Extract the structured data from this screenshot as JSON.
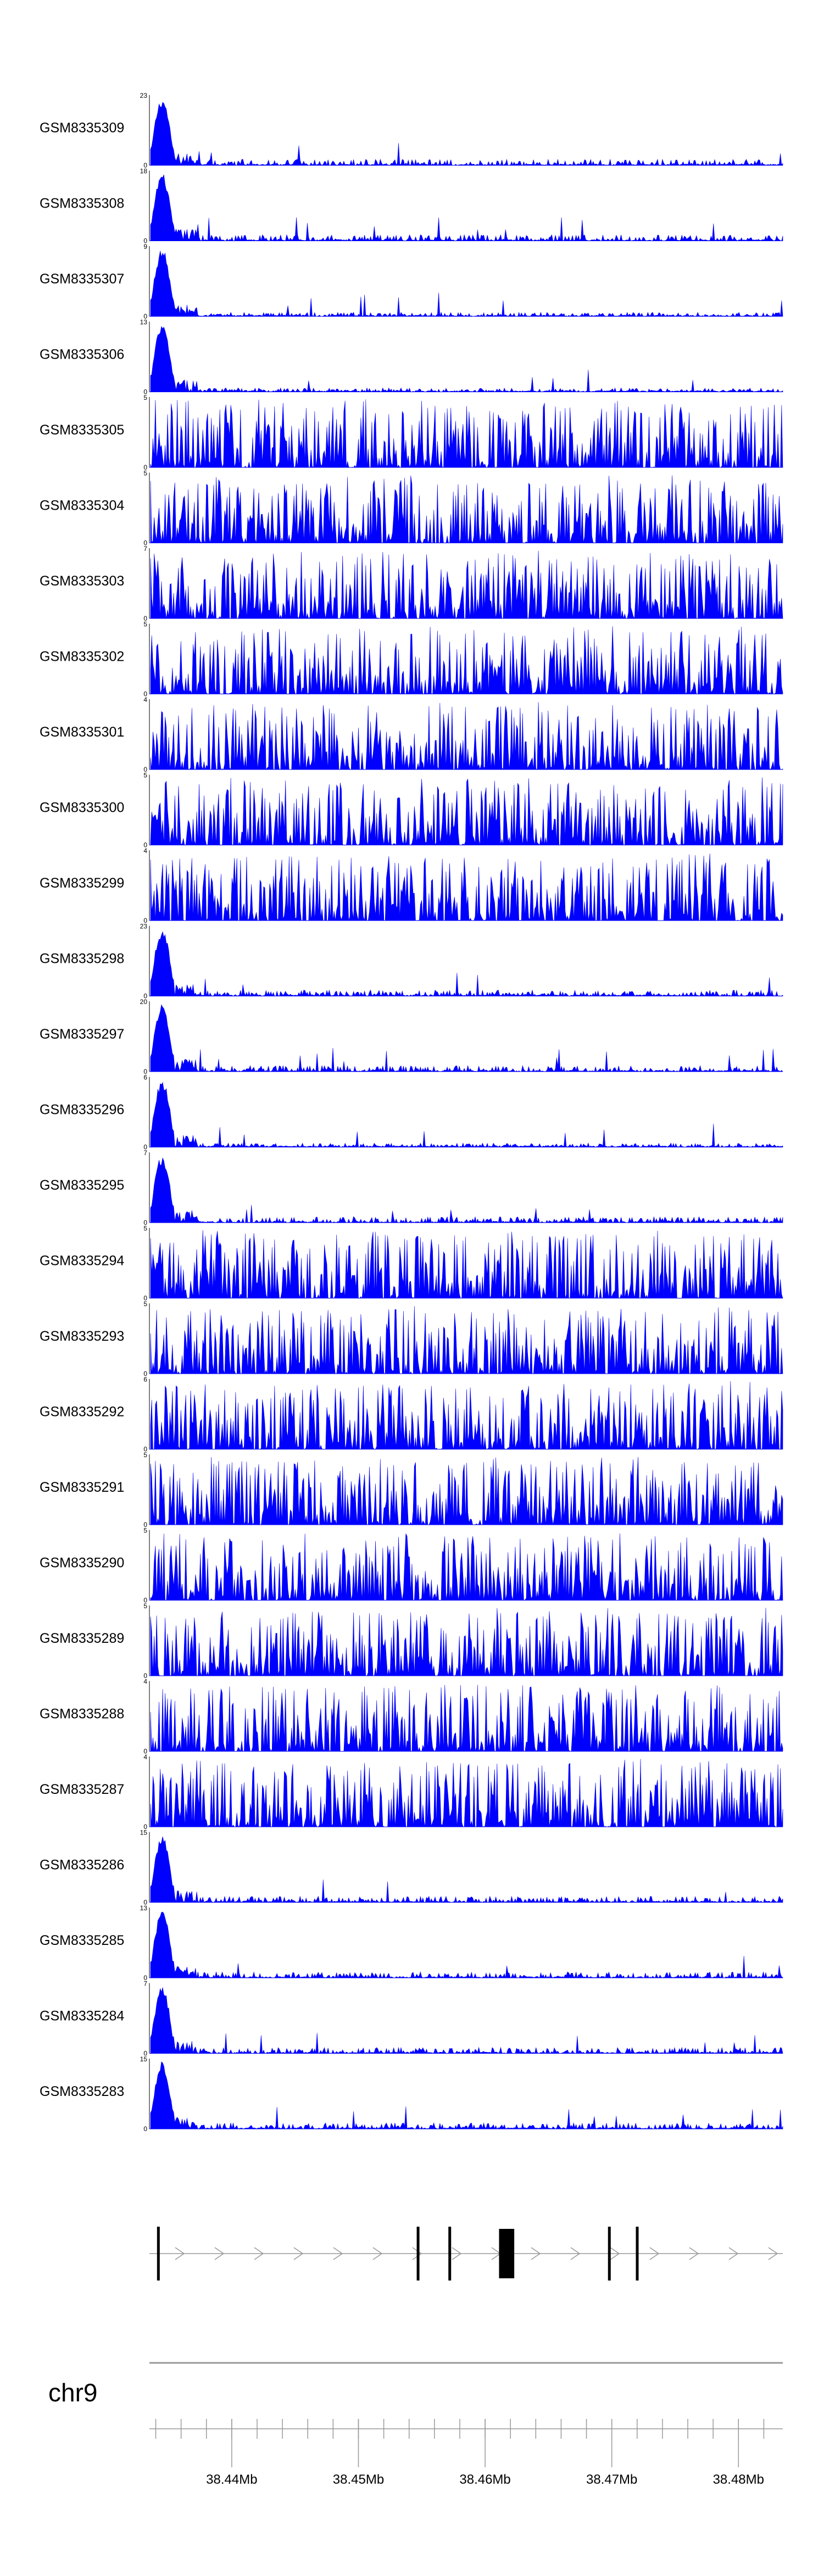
{
  "chart_data": {
    "type": "area",
    "description_color": "#0000ff",
    "genome_range_mb": [
      38.4335,
      38.4835
    ],
    "peak_region_mb": [
      38.4335,
      38.4355
    ],
    "tracks": [
      {
        "name": "GSM8335309",
        "ymax": 23,
        "profile": "peak"
      },
      {
        "name": "GSM8335308",
        "ymax": 18,
        "profile": "peak"
      },
      {
        "name": "GSM8335307",
        "ymax": 9,
        "profile": "peak-sparse"
      },
      {
        "name": "GSM8335306",
        "ymax": 13,
        "profile": "peak-sparse"
      },
      {
        "name": "GSM8335305",
        "ymax": 5,
        "profile": "dense"
      },
      {
        "name": "GSM8335304",
        "ymax": 5,
        "profile": "dense"
      },
      {
        "name": "GSM8335303",
        "ymax": 7,
        "profile": "dense"
      },
      {
        "name": "GSM8335302",
        "ymax": 5,
        "profile": "dense"
      },
      {
        "name": "GSM8335301",
        "ymax": 4,
        "profile": "dense"
      },
      {
        "name": "GSM8335300",
        "ymax": 5,
        "profile": "dense"
      },
      {
        "name": "GSM8335299",
        "ymax": 4,
        "profile": "dense"
      },
      {
        "name": "GSM8335298",
        "ymax": 23,
        "profile": "peak"
      },
      {
        "name": "GSM8335297",
        "ymax": 20,
        "profile": "peak"
      },
      {
        "name": "GSM8335296",
        "ymax": 6,
        "profile": "peak-sparse"
      },
      {
        "name": "GSM8335295",
        "ymax": 7,
        "profile": "peak"
      },
      {
        "name": "GSM8335294",
        "ymax": 5,
        "profile": "dense"
      },
      {
        "name": "GSM8335293",
        "ymax": 5,
        "profile": "dense"
      },
      {
        "name": "GSM8335292",
        "ymax": 6,
        "profile": "dense"
      },
      {
        "name": "GSM8335291",
        "ymax": 5,
        "profile": "dense"
      },
      {
        "name": "GSM8335290",
        "ymax": 5,
        "profile": "dense"
      },
      {
        "name": "GSM8335289",
        "ymax": 5,
        "profile": "dense"
      },
      {
        "name": "GSM8335288",
        "ymax": 4,
        "profile": "dense"
      },
      {
        "name": "GSM8335287",
        "ymax": 4,
        "profile": "dense"
      },
      {
        "name": "GSM8335286",
        "ymax": 15,
        "profile": "peak"
      },
      {
        "name": "GSM8335285",
        "ymax": 13,
        "profile": "peak"
      },
      {
        "name": "GSM8335284",
        "ymax": 7,
        "profile": "peak"
      },
      {
        "name": "GSM8335283",
        "ymax": 15,
        "profile": "peak"
      }
    ],
    "ymin_label": "0",
    "gene_model": {
      "strand": "+",
      "exons_mb": [
        {
          "start": 38.4341,
          "end": 38.4343
        },
        {
          "start": 38.4546,
          "end": 38.4548
        },
        {
          "start": 38.4571,
          "end": 38.4573
        },
        {
          "start": 38.4611,
          "end": 38.4623
        },
        {
          "start": 38.4697,
          "end": 38.4699
        },
        {
          "start": 38.4719,
          "end": 38.4721
        }
      ]
    },
    "chromosome": "chr9",
    "axis_ticks": [
      {
        "value": 38.44,
        "label": "38.44Mb"
      },
      {
        "value": 38.45,
        "label": "38.45Mb"
      },
      {
        "value": 38.46,
        "label": "38.46Mb"
      },
      {
        "value": 38.47,
        "label": "38.47Mb"
      },
      {
        "value": 38.48,
        "label": "38.48Mb"
      }
    ],
    "minor_tick_step_mb": 0.002
  }
}
